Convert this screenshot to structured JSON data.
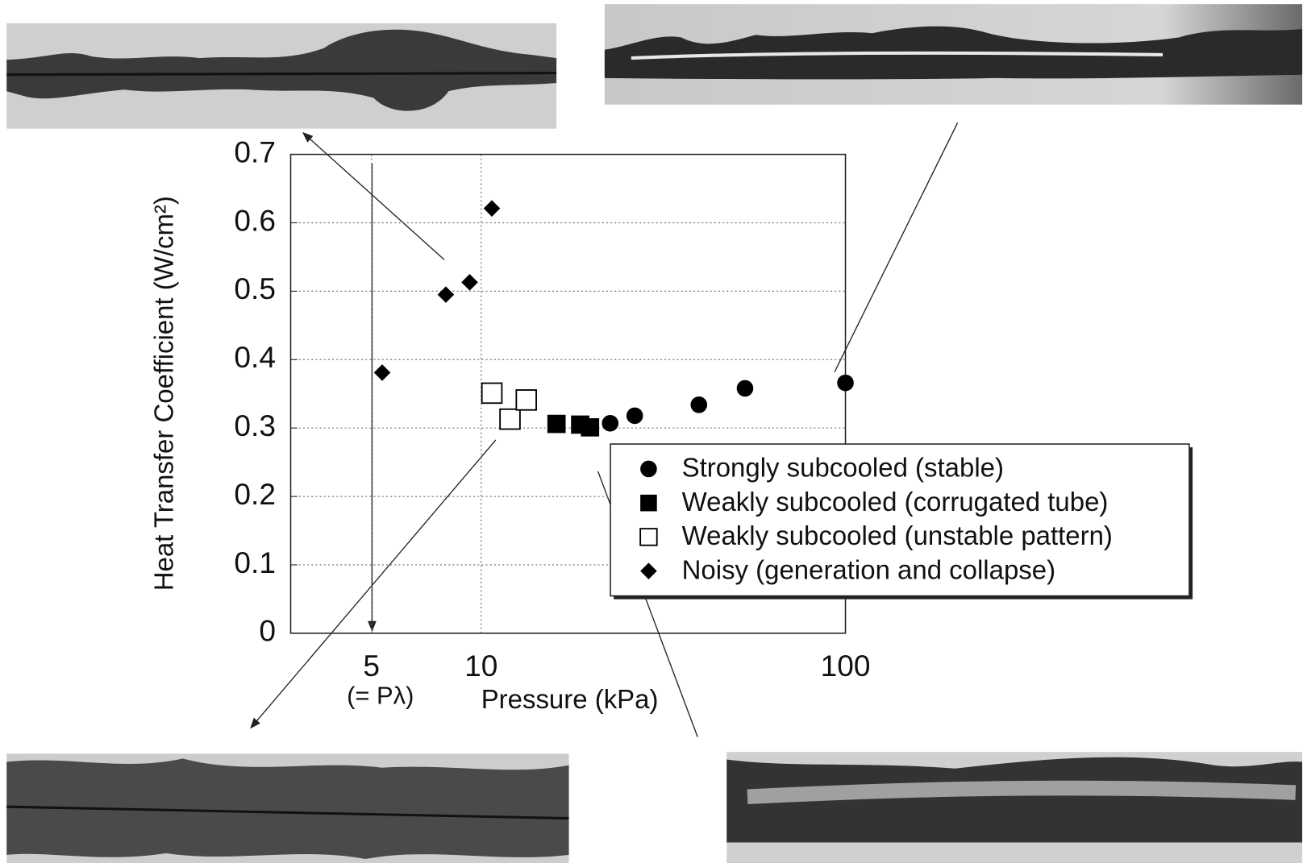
{
  "chart_data": {
    "type": "scatter",
    "x_label": "Pressure (kPa)",
    "y_label": "Heat Transfer Coefficient (W/cm²)",
    "annotation": "(= Pλ)",
    "xscale": "log",
    "xlim": [
      3,
      100
    ],
    "xticks": [
      5,
      10,
      100
    ],
    "ylim": [
      0,
      0.7
    ],
    "yticks": [
      0,
      0.1,
      0.2,
      0.3,
      0.4,
      0.5,
      0.6,
      0.7
    ],
    "grid": true,
    "legend": "lower right",
    "series": [
      {
        "name": "Strongly subcooled (stable)",
        "marker": "circle",
        "color": "#000000",
        "x": [
          22.6,
          26.4,
          39.6,
          53.0,
          100
        ],
        "values": [
          0.307,
          0.318,
          0.334,
          0.358,
          0.366
        ]
      },
      {
        "name": "Weakly subcooled (corrugated tube)",
        "marker": "square",
        "color": "#000000",
        "x": [
          16.1,
          18.7,
          19.9
        ],
        "values": [
          0.306,
          0.305,
          0.301
        ]
      },
      {
        "name": "Weakly subcooled (unstable pattern)",
        "marker": "square-open",
        "color": "#000000",
        "x": [
          10.7,
          12.0,
          13.3
        ],
        "values": [
          0.351,
          0.313,
          0.341
        ]
      },
      {
        "name": "Noisy (generation and collapse)",
        "marker": "diamond",
        "color": "#000000",
        "x": [
          5.35,
          8.0,
          9.3,
          10.7
        ],
        "values": [
          0.381,
          0.495,
          0.513,
          0.621
        ]
      }
    ]
  }
}
